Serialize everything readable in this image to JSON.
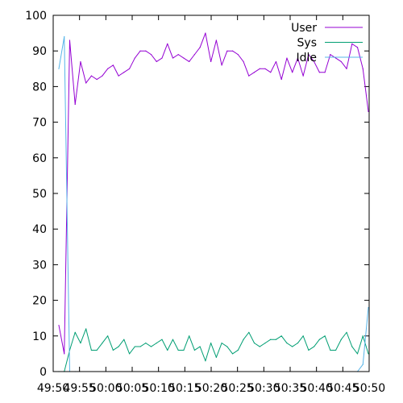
{
  "chart_data": {
    "type": "line",
    "title": "",
    "xlabel": "",
    "ylabel": "",
    "ylim": [
      0,
      100
    ],
    "grid": false,
    "legend_position": "top-right",
    "y_ticks": [
      0,
      10,
      20,
      30,
      40,
      50,
      60,
      70,
      80,
      90,
      100
    ],
    "x_ticks": [
      "49:50",
      "49:55",
      "50:00",
      "50:05",
      "50:10",
      "50:15",
      "50:20",
      "50:25",
      "50:30",
      "50:35",
      "50:40",
      "50:45",
      "50:50"
    ],
    "x_range": [
      "49:50",
      "50:50"
    ],
    "series": [
      {
        "name": "User",
        "color": "#9400d3",
        "values": [
          13,
          5,
          93,
          75,
          87,
          81,
          83,
          82,
          83,
          85,
          86,
          83,
          84,
          85,
          88,
          90,
          90,
          89,
          87,
          88,
          92,
          88,
          89,
          88,
          87,
          89,
          91,
          95,
          87,
          93,
          86,
          90,
          90,
          89,
          87,
          83,
          84,
          85,
          85,
          84,
          87,
          82,
          88,
          84,
          88,
          83,
          89,
          87,
          84,
          84,
          89,
          88,
          87,
          85,
          92,
          91,
          85,
          73
        ]
      },
      {
        "name": "Sys",
        "color": "#009e73",
        "values": [
          0,
          0,
          6,
          11,
          8,
          12,
          6,
          6,
          8,
          10,
          6,
          7,
          9,
          5,
          7,
          7,
          8,
          7,
          8,
          9,
          6,
          9,
          6,
          6,
          10,
          6,
          7,
          3,
          8,
          4,
          8,
          7,
          5,
          6,
          9,
          11,
          8,
          7,
          8,
          9,
          9,
          10,
          8,
          7,
          8,
          10,
          6,
          7,
          9,
          10,
          6,
          6,
          9,
          11,
          7,
          5,
          10,
          5
        ]
      },
      {
        "name": "Idle",
        "color": "#56b4e9",
        "values": [
          85,
          94,
          0,
          0,
          null,
          null,
          null,
          null,
          null,
          null,
          null,
          null,
          null,
          null,
          null,
          null,
          null,
          null,
          null,
          null,
          null,
          null,
          null,
          null,
          null,
          null,
          null,
          null,
          null,
          null,
          null,
          null,
          null,
          null,
          null,
          null,
          null,
          null,
          null,
          null,
          null,
          null,
          null,
          null,
          null,
          null,
          null,
          null,
          null,
          null,
          null,
          null,
          null,
          null,
          null,
          0,
          2,
          18
        ]
      }
    ]
  }
}
